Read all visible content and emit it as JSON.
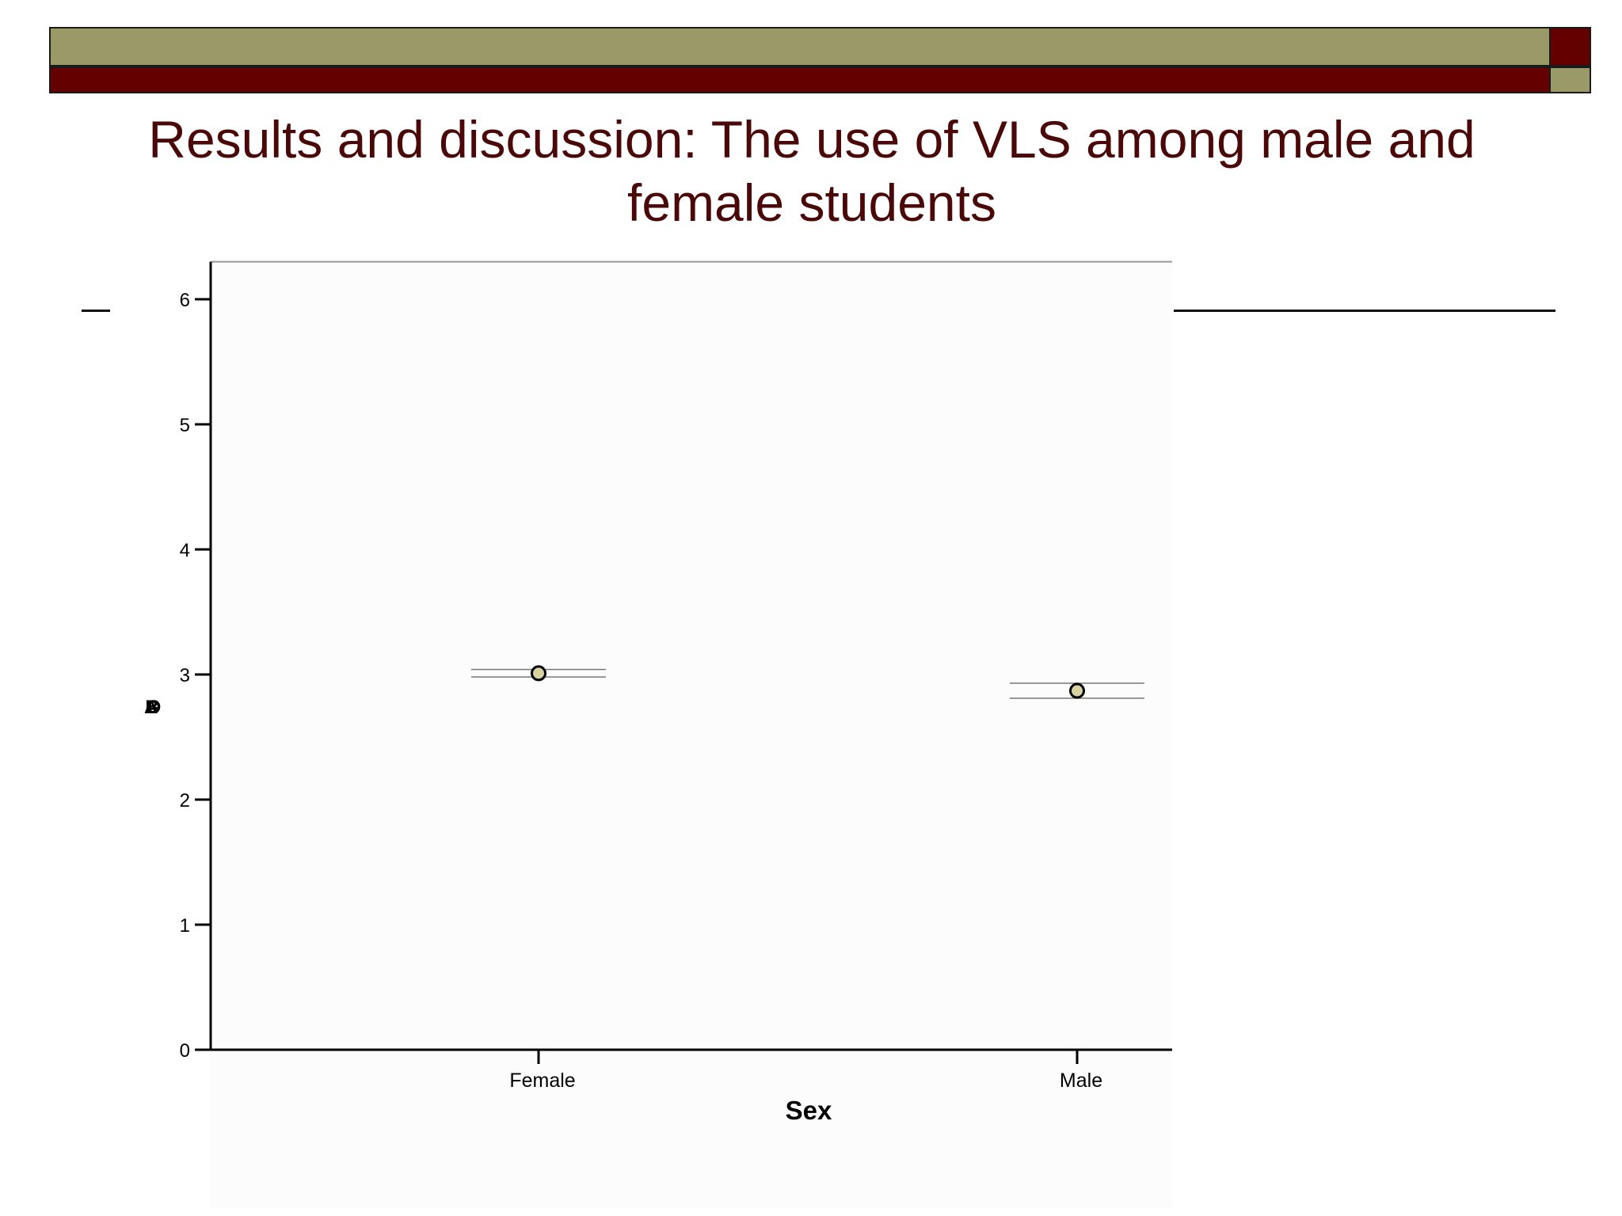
{
  "slide": {
    "title_line1": "Results and discussion: The use of VLS among male and",
    "title_line2": "female students"
  },
  "colors": {
    "olive": "#9a9a68",
    "maroon": "#630000",
    "title": "#4a0808",
    "marker_fill": "#d6d3a0"
  },
  "chart_data": {
    "type": "scatter",
    "categories": [
      "Female",
      "Male"
    ],
    "xlabel": "Sex",
    "ylabel": "",
    "ylim": [
      0,
      6.3
    ],
    "yticks": [
      "0",
      "1",
      "2",
      "3",
      "4",
      "5",
      "6"
    ],
    "series": [
      {
        "values": [
          3.01,
          2.87
        ],
        "error_low": [
          2.98,
          2.81
        ],
        "error_high": [
          3.04,
          2.93
        ]
      }
    ],
    "grid": false
  }
}
